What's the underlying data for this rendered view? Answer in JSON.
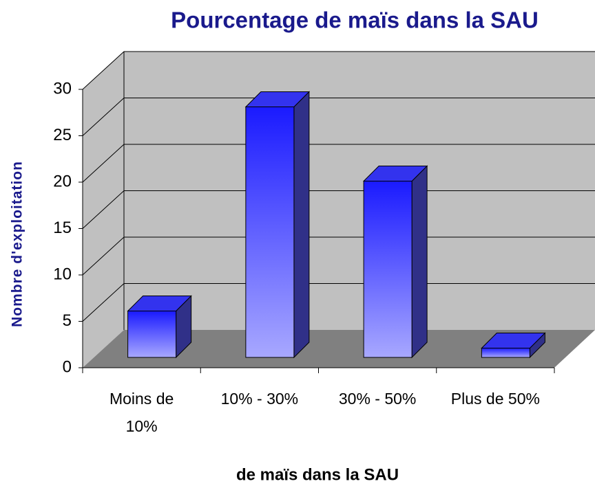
{
  "chart_data": {
    "type": "bar3d",
    "title": "Pourcentage de maïs dans la SAU",
    "x_label": "de maïs dans la SAU",
    "y_label": "Nombre d'exploitation",
    "categories": [
      "Moins de\n10%",
      "10% - 30%",
      "30% - 50%",
      "Plus de 50%"
    ],
    "values": [
      5,
      27,
      19,
      1
    ],
    "color": "#2020ff",
    "ylim": [
      0,
      30
    ],
    "yticks": [
      0,
      5,
      10,
      15,
      20,
      25,
      30
    ],
    "grid": true
  }
}
